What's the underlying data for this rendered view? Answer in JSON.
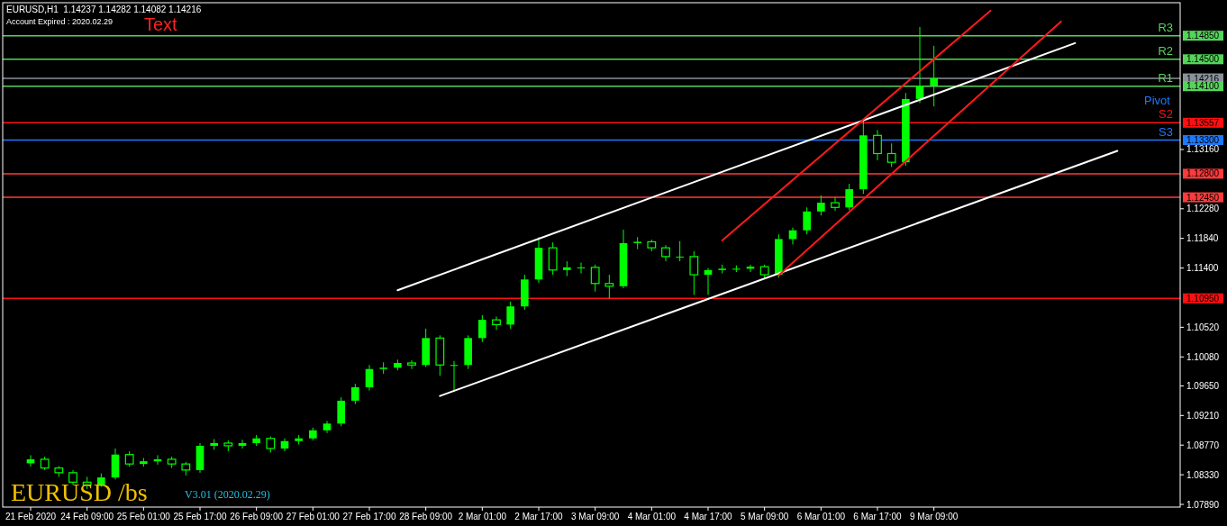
{
  "chart_data": {
    "type": "candlestick",
    "title": "EURUSD,H1  1.14237 1.14282 1.14082 1.14216",
    "subtitle": "Account Expired : 2020.02.29",
    "annotations": [
      "Text",
      "EURUSD /bs",
      "V3.01 (2020.02.29)",
      "Pivot",
      {
        "text": "R3",
        "y": 1.1485
      },
      {
        "text": "R2",
        "y": 1.145
      },
      {
        "text": "R1",
        "y": 1.141
      },
      {
        "text": "S2",
        "y": 1.13557
      },
      {
        "text": "S3",
        "y": 1.133
      }
    ],
    "categories": [
      "21 Feb 2020",
      null,
      null,
      null,
      "24 Feb 09:00",
      null,
      null,
      null,
      "25 Feb 01:00",
      null,
      null,
      null,
      "25 Feb 17:00",
      null,
      null,
      null,
      "26 Feb 09:00",
      null,
      null,
      null,
      "27 Feb 01:00",
      null,
      null,
      null,
      "27 Feb 17:00",
      null,
      null,
      null,
      "28 Feb 09:00",
      null,
      null,
      null,
      "2 Mar 01:00",
      null,
      null,
      null,
      "2 Mar 17:00",
      null,
      null,
      null,
      "3 Mar 09:00",
      null,
      null,
      null,
      "4 Mar 01:00",
      null,
      null,
      null,
      "4 Mar 17:00",
      null,
      null,
      null,
      "5 Mar 09:00",
      null,
      null,
      null,
      "6 Mar 01:00",
      null,
      null,
      null,
      "6 Mar 17:00",
      null,
      null,
      null,
      "9 Mar 09:00",
      null,
      null,
      null,
      null,
      null,
      null,
      null,
      null,
      null,
      null,
      null,
      null,
      null,
      null,
      null,
      null,
      null
    ],
    "color": "#00ff00",
    "ohlc": [
      [
        1.085,
        1.0862,
        1.0845,
        1.0856
      ],
      [
        1.0856,
        1.086,
        1.084,
        1.0843
      ],
      [
        1.0843,
        1.0846,
        1.083,
        1.0836
      ],
      [
        1.0836,
        1.084,
        1.0818,
        1.0822
      ],
      [
        1.0822,
        1.083,
        1.0812,
        1.0818
      ],
      [
        1.0818,
        1.0835,
        1.0815,
        1.0829
      ],
      [
        1.0829,
        1.0872,
        1.0826,
        1.0863
      ],
      [
        1.0863,
        1.0868,
        1.0845,
        1.0849
      ],
      [
        1.0849,
        1.0858,
        1.0845,
        1.0853
      ],
      [
        1.0853,
        1.0862,
        1.0848,
        1.0856
      ],
      [
        1.0856,
        1.086,
        1.0843,
        1.0849
      ],
      [
        1.0849,
        1.0852,
        1.0832,
        1.084
      ],
      [
        1.084,
        1.088,
        1.0836,
        1.0876
      ],
      [
        1.0876,
        1.0886,
        1.087,
        1.088
      ],
      [
        1.088,
        1.0884,
        1.0868,
        1.0876
      ],
      [
        1.0876,
        1.0885,
        1.0872,
        1.088
      ],
      [
        1.088,
        1.0892,
        1.0876,
        1.0887
      ],
      [
        1.0887,
        1.089,
        1.0866,
        1.0872
      ],
      [
        1.0872,
        1.0887,
        1.0868,
        1.0883
      ],
      [
        1.0883,
        1.0892,
        1.0878,
        1.0887
      ],
      [
        1.0887,
        1.0903,
        1.0884,
        1.0899
      ],
      [
        1.0899,
        1.0913,
        1.0895,
        1.0909
      ],
      [
        1.0909,
        1.0948,
        1.0905,
        1.0943
      ],
      [
        1.0943,
        1.0968,
        1.0938,
        1.0963
      ],
      [
        1.0963,
        1.0996,
        1.0958,
        1.099
      ],
      [
        1.099,
        1.1,
        1.0983,
        1.0992
      ],
      [
        1.0992,
        1.1004,
        1.0988,
        1.0999
      ],
      [
        1.0999,
        1.1003,
        1.099,
        1.0996
      ],
      [
        1.0996,
        1.105,
        1.0993,
        1.1036
      ],
      [
        1.1036,
        1.104,
        1.098,
        1.0996
      ],
      [
        1.0996,
        1.1002,
        1.0956,
        1.0996
      ],
      [
        1.0996,
        1.104,
        1.099,
        1.1036
      ],
      [
        1.1036,
        1.107,
        1.103,
        1.1063
      ],
      [
        1.1063,
        1.1068,
        1.1048,
        1.1056
      ],
      [
        1.1056,
        1.109,
        1.105,
        1.1083
      ],
      [
        1.1083,
        1.113,
        1.1078,
        1.1123
      ],
      [
        1.1123,
        1.1186,
        1.1118,
        1.117
      ],
      [
        1.117,
        1.1178,
        1.113,
        1.1137
      ],
      [
        1.1137,
        1.115,
        1.1128,
        1.1141
      ],
      [
        1.1141,
        1.1148,
        1.1132,
        1.1141
      ],
      [
        1.1141,
        1.1145,
        1.1105,
        1.1117
      ],
      [
        1.1117,
        1.113,
        1.1095,
        1.1113
      ],
      [
        1.1113,
        1.1197,
        1.111,
        1.1177
      ],
      [
        1.1177,
        1.1186,
        1.1168,
        1.1179
      ],
      [
        1.1179,
        1.1182,
        1.1165,
        1.117
      ],
      [
        1.117,
        1.1174,
        1.115,
        1.1157
      ],
      [
        1.1157,
        1.118,
        1.115,
        1.1157
      ],
      [
        1.1157,
        1.1165,
        1.11,
        1.113
      ],
      [
        1.113,
        1.114,
        1.11,
        1.1137
      ],
      [
        1.1137,
        1.1145,
        1.1132,
        1.1139
      ],
      [
        1.1139,
        1.1144,
        1.1134,
        1.1139
      ],
      [
        1.1139,
        1.1145,
        1.1134,
        1.1142
      ],
      [
        1.1142,
        1.1145,
        1.1125,
        1.113
      ],
      [
        1.113,
        1.119,
        1.1126,
        1.1183
      ],
      [
        1.1183,
        1.12,
        1.1175,
        1.1196
      ],
      [
        1.1196,
        1.123,
        1.119,
        1.1224
      ],
      [
        1.1224,
        1.1248,
        1.1218,
        1.1237
      ],
      [
        1.1237,
        1.1245,
        1.1225,
        1.123
      ],
      [
        1.123,
        1.1265,
        1.1226,
        1.1257
      ],
      [
        1.1257,
        1.136,
        1.125,
        1.1337
      ],
      [
        1.1337,
        1.1345,
        1.13,
        1.131
      ],
      [
        1.131,
        1.1325,
        1.129,
        1.1297
      ],
      [
        1.1297,
        1.14,
        1.1292,
        1.1391
      ],
      [
        1.1391,
        1.1498,
        1.1385,
        1.1411
      ],
      [
        1.1411,
        1.147,
        1.138,
        1.1422
      ],
      null,
      null,
      null,
      null,
      null,
      null,
      null,
      null,
      null,
      null,
      null,
      null,
      null,
      null,
      null,
      null,
      null
    ],
    "series": [
      {
        "type": "line",
        "color": "#ffffff",
        "values": [
          null,
          null,
          null,
          null,
          null,
          null,
          null,
          null,
          null,
          null,
          null,
          null,
          null,
          null,
          null,
          null,
          null,
          null,
          null,
          null,
          null,
          null,
          null,
          null,
          null,
          null,
          1.1107,
          null,
          null,
          null,
          null,
          null,
          null,
          null,
          null,
          null,
          null,
          null,
          null,
          null,
          null,
          null,
          null,
          null,
          null,
          null,
          null,
          null,
          null,
          null,
          null,
          null,
          null,
          null,
          null,
          null,
          null,
          null,
          null,
          null,
          null,
          null,
          null,
          null,
          null,
          null,
          null,
          null,
          null,
          null,
          null,
          null,
          null,
          null,
          1.1474,
          null,
          null,
          null,
          null,
          null,
          null,
          null
        ]
      },
      {
        "type": "line",
        "color": "#ffffff",
        "values": [
          null,
          null,
          null,
          null,
          null,
          null,
          null,
          null,
          null,
          null,
          null,
          null,
          null,
          null,
          null,
          null,
          null,
          null,
          null,
          null,
          null,
          null,
          null,
          null,
          null,
          null,
          null,
          null,
          null,
          1.095,
          null,
          null,
          null,
          null,
          null,
          null,
          null,
          null,
          null,
          null,
          null,
          null,
          null,
          null,
          null,
          null,
          null,
          null,
          null,
          null,
          null,
          null,
          null,
          null,
          null,
          null,
          null,
          null,
          null,
          null,
          null,
          null,
          null,
          null,
          null,
          null,
          null,
          null,
          null,
          null,
          null,
          null,
          null,
          null,
          null,
          null,
          null,
          1.1314,
          null,
          null,
          null,
          null
        ]
      },
      {
        "type": "line",
        "color": "#ff1a1a",
        "values": [
          null,
          null,
          null,
          null,
          null,
          null,
          null,
          null,
          null,
          null,
          null,
          null,
          null,
          null,
          null,
          null,
          null,
          null,
          null,
          null,
          null,
          null,
          null,
          null,
          null,
          null,
          null,
          null,
          null,
          null,
          null,
          null,
          null,
          null,
          null,
          null,
          null,
          null,
          null,
          null,
          null,
          null,
          null,
          null,
          null,
          null,
          null,
          null,
          null,
          1.1181,
          null,
          null,
          null,
          null,
          null,
          null,
          null,
          null,
          null,
          null,
          null,
          null,
          null,
          null,
          null,
          null,
          null,
          null,
          1.1522,
          null,
          null,
          null,
          null,
          null,
          null,
          null,
          null,
          null,
          null,
          null,
          null,
          null
        ]
      },
      {
        "type": "line",
        "color": "#ff1a1a",
        "values": [
          null,
          null,
          null,
          null,
          null,
          null,
          null,
          null,
          null,
          null,
          null,
          null,
          null,
          null,
          null,
          null,
          null,
          null,
          null,
          null,
          null,
          null,
          null,
          null,
          null,
          null,
          null,
          null,
          null,
          null,
          null,
          null,
          null,
          null,
          null,
          null,
          null,
          null,
          null,
          null,
          null,
          null,
          null,
          null,
          null,
          null,
          null,
          null,
          null,
          null,
          null,
          null,
          null,
          1.1129,
          null,
          null,
          null,
          null,
          null,
          null,
          null,
          null,
          null,
          null,
          null,
          null,
          null,
          null,
          null,
          null,
          null,
          null,
          null,
          1.1506,
          null,
          null,
          null,
          null,
          null,
          null,
          null,
          null
        ]
      }
    ],
    "ylim": [
      1.0785,
      1.1534
    ],
    "yticks": [
      {
        "value": 1.0789,
        "label": "1.07890"
      },
      {
        "value": 1.0833,
        "label": "1.08330"
      },
      {
        "value": 1.0877,
        "label": "1.08770"
      },
      {
        "value": 1.0921,
        "label": "1.09210"
      },
      {
        "value": 1.0965,
        "label": "1.09650"
      },
      {
        "value": 1.1008,
        "label": "1.10080"
      },
      {
        "value": 1.1052,
        "label": "1.10520"
      },
      {
        "value": 1.114,
        "label": "1.11400"
      },
      {
        "value": 1.1184,
        "label": "1.11840"
      },
      {
        "value": 1.1228,
        "label": "1.12280"
      },
      {
        "value": 1.1316,
        "label": "1.13160"
      }
    ],
    "ref_lines": [
      {
        "axis": "y",
        "value": 1.1485,
        "label": "1.14850",
        "color": "#55d45a"
      },
      {
        "axis": "y",
        "value": 1.145,
        "label": "1.14500",
        "color": "#55d45a"
      },
      {
        "axis": "y",
        "value": 1.14216,
        "label": "1.14216",
        "color": "#8a9199"
      },
      {
        "axis": "y",
        "value": 1.141,
        "label": "1.14100",
        "color": "#55d45a"
      },
      {
        "axis": "y",
        "value": 1.13557,
        "label": "1.13557",
        "color": "#ff1010"
      },
      {
        "axis": "y",
        "value": 1.133,
        "label": "1.13300",
        "color": "#1e78ff"
      },
      {
        "axis": "y",
        "value": 1.128,
        "label": "1.12800",
        "color": "#ff3a3a"
      },
      {
        "axis": "y",
        "value": 1.1245,
        "label": "1.12450",
        "color": "#ff3a3a"
      },
      {
        "axis": "y",
        "value": 1.1095,
        "label": "1.10950",
        "color": "#ff1010"
      }
    ]
  }
}
